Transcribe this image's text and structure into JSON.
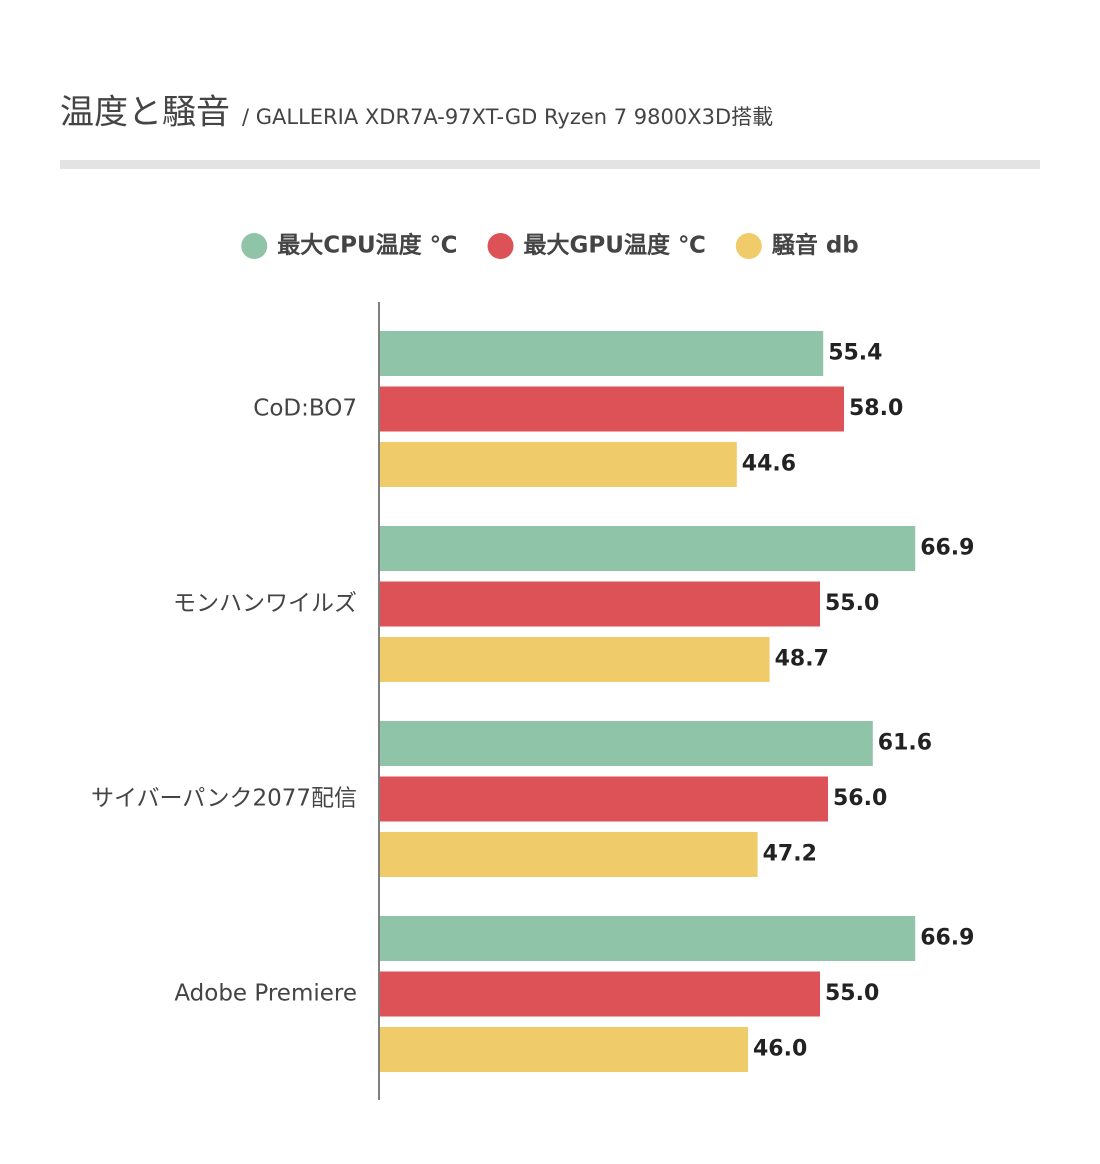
{
  "chart_data": {
    "type": "hbar",
    "title": "温度と騒音",
    "subtitle": "/ GALLERIA XDR7A-97XT-GD Ryzen 7 9800X3D搭載",
    "categories": [
      "CoD:BO7",
      "モンハンワイルズ",
      "サイバーパンク2077配信",
      "Adobe Premiere"
    ],
    "series": [
      {
        "name": "最大CPU温度 ℃",
        "color": "#8fc4a9",
        "values": [
          55.4,
          66.9,
          61.6,
          66.9
        ],
        "value_labels": [
          "55.4",
          "66.9",
          "61.6",
          "66.9"
        ]
      },
      {
        "name": "最大GPU温度 ℃",
        "color": "#dc5257",
        "values": [
          58,
          55,
          56,
          55
        ],
        "value_labels": [
          "58.0",
          "55.0",
          "56.0",
          "55.0"
        ]
      },
      {
        "name": "騒音 db",
        "color": "#efcb69",
        "values": [
          44.6,
          48.7,
          47.2,
          46
        ],
        "value_labels": [
          "44.6",
          "48.7",
          "47.2",
          "46.0"
        ]
      }
    ],
    "xlim": [
      0,
      80
    ],
    "legend": "top"
  }
}
